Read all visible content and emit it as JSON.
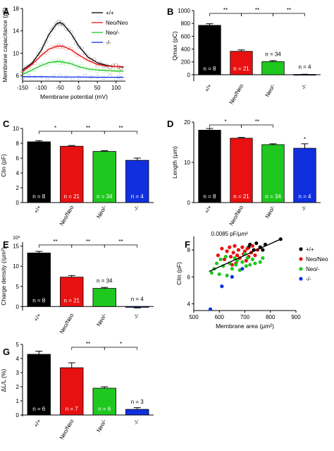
{
  "chart_data": [
    {
      "panel": "A",
      "type": "line",
      "xlabel": "Membrane potential (mV)",
      "ylabel": "Membrane capacitance (pF)",
      "xlim": [
        -150,
        125
      ],
      "ylim": [
        5,
        18
      ],
      "xticks": [
        -150,
        -100,
        -50,
        0,
        50,
        100
      ],
      "yticks": [
        6,
        10,
        14,
        18
      ],
      "legend_position": "top-right",
      "series": [
        {
          "name": "+/+",
          "color": "#000000",
          "x": [
            -150,
            -125,
            -100,
            -80,
            -60,
            -50,
            -40,
            -20,
            0,
            25,
            50,
            75,
            100,
            120
          ],
          "y": [
            7.0,
            8.2,
            10.5,
            13.3,
            15.2,
            15.5,
            15.1,
            13.5,
            11.3,
            9.3,
            8.3,
            7.8,
            7.6,
            7.5
          ]
        },
        {
          "name": "Neo/Neo",
          "color": "#e81010",
          "x": [
            -150,
            -125,
            -100,
            -80,
            -60,
            -50,
            -40,
            -20,
            0,
            25,
            50,
            75,
            100,
            120
          ],
          "y": [
            6.7,
            8.0,
            9.6,
            10.7,
            11.2,
            11.3,
            11.2,
            10.6,
            9.7,
            8.7,
            8.0,
            7.7,
            7.6,
            7.6
          ]
        },
        {
          "name": "Neo/-",
          "color": "#1ec81e",
          "x": [
            -150,
            -125,
            -100,
            -80,
            -60,
            -50,
            -40,
            -20,
            0,
            25,
            50,
            75,
            100,
            120
          ],
          "y": [
            6.2,
            7.0,
            7.8,
            8.3,
            8.5,
            8.5,
            8.4,
            8.1,
            7.6,
            7.2,
            7.0,
            6.9,
            6.8,
            6.8
          ]
        },
        {
          "name": "-/-",
          "color": "#1030e0",
          "x": [
            -150,
            -100,
            -50,
            0,
            50,
            100,
            120
          ],
          "y": [
            5.8,
            5.8,
            5.75,
            5.75,
            5.7,
            5.7,
            5.7
          ]
        }
      ]
    },
    {
      "panel": "B",
      "type": "bar",
      "ylabel": "Qmax (pC)",
      "ylim": [
        -100,
        1000
      ],
      "yticks": [
        0,
        200,
        400,
        600,
        800,
        1000
      ],
      "categories": [
        "+/+",
        "Neo/Neo",
        "Neo/-",
        "-/-"
      ],
      "values": [
        770,
        365,
        205,
        5
      ],
      "errors": [
        25,
        22,
        15,
        3
      ],
      "colors": [
        "#000000",
        "#e81010",
        "#1ec81e",
        "#1030e0"
      ],
      "n_labels": [
        "n = 8",
        "n = 21",
        "n = 34",
        "n = 4"
      ],
      "significance": [
        {
          "pair": [
            0,
            1
          ],
          "label": "**"
        },
        {
          "pair": [
            1,
            2
          ],
          "label": "**"
        },
        {
          "pair": [
            2,
            3
          ],
          "label": "**"
        }
      ]
    },
    {
      "panel": "C",
      "type": "bar",
      "ylabel": "Clin (pF)",
      "ylim": [
        0,
        10
      ],
      "yticks": [
        0,
        2,
        4,
        6,
        8,
        10
      ],
      "categories": [
        "+/+",
        "Neo/Neo",
        "Neo/-",
        "-/-"
      ],
      "values": [
        8.2,
        7.6,
        6.9,
        5.7
      ],
      "errors": [
        0.15,
        0.1,
        0.1,
        0.3
      ],
      "colors": [
        "#000000",
        "#e81010",
        "#1ec81e",
        "#1030e0"
      ],
      "n_labels": [
        "n = 8",
        "n = 21",
        "n = 34",
        "n = 4"
      ],
      "significance": [
        {
          "pair": [
            0,
            1
          ],
          "label": "*"
        },
        {
          "pair": [
            1,
            2
          ],
          "label": "**"
        },
        {
          "pair": [
            2,
            3
          ],
          "label": "**"
        }
      ]
    },
    {
      "panel": "D",
      "type": "bar",
      "ylabel": "Length (μm)",
      "ylim": [
        0,
        20
      ],
      "yticks": [
        0,
        10,
        20
      ],
      "categories": [
        "+/+",
        "Neo/Neo",
        "Neo/-",
        "-/-"
      ],
      "values": [
        18.0,
        16.0,
        14.4,
        13.5
      ],
      "errors": [
        0.4,
        0.2,
        0.2,
        1.1
      ],
      "colors": [
        "#000000",
        "#e81010",
        "#1ec81e",
        "#1030e0"
      ],
      "n_labels": [
        "n = 8",
        "n = 21",
        "n = 34",
        "n = 4"
      ],
      "significance": [
        {
          "pair": [
            0,
            1
          ],
          "label": "*"
        },
        {
          "pair": [
            1,
            2
          ],
          "label": "**"
        },
        {
          "single": 3,
          "label": "*"
        }
      ]
    },
    {
      "panel": "E",
      "type": "bar",
      "ylabel": "Charge density (/μm²)",
      "scale_note": "10³",
      "ylim": [
        -1,
        16
      ],
      "yticks": [
        0,
        5,
        10,
        15
      ],
      "categories": [
        "+/+",
        "Neo/Neo",
        "Neo/-",
        "-/-"
      ],
      "values": [
        13.3,
        7.3,
        4.5,
        -0.2
      ],
      "errors": [
        0.4,
        0.4,
        0.25,
        0.15
      ],
      "colors": [
        "#000000",
        "#e81010",
        "#1ec81e",
        "#1030e0"
      ],
      "n_labels": [
        "n = 8",
        "n = 21",
        "n = 34",
        "n = 4"
      ],
      "significance": [
        {
          "pair": [
            0,
            1
          ],
          "label": "**"
        },
        {
          "pair": [
            1,
            2
          ],
          "label": "**"
        },
        {
          "pair": [
            2,
            3
          ],
          "label": "**"
        }
      ]
    },
    {
      "panel": "F",
      "type": "scatter",
      "xlabel": "Membrane area (μm²)",
      "ylabel": "Clin (pF)",
      "xlim": [
        500,
        900
      ],
      "ylim": [
        3.5,
        9
      ],
      "xticks": [
        500,
        600,
        700,
        800,
        900
      ],
      "yticks": [
        4,
        6,
        8
      ],
      "annotation": "0.0085 pF/μm²",
      "fit_line": {
        "x": [
          560,
          840
        ],
        "y": [
          6.4,
          8.8
        ]
      },
      "legend_position": "right",
      "series": [
        {
          "name": "+/+",
          "color": "#000000",
          "x": [
            715,
            720,
            735,
            745,
            760,
            770,
            780,
            840
          ],
          "y": [
            8.2,
            8.4,
            8.0,
            8.5,
            8.2,
            8.0,
            8.4,
            8.8
          ]
        },
        {
          "name": "Neo/Neo",
          "color": "#e81010",
          "x": [
            595,
            610,
            620,
            630,
            640,
            645,
            650,
            655,
            660,
            665,
            670,
            675,
            680,
            690,
            695,
            700,
            705,
            710,
            715,
            725,
            730,
            740,
            750
          ],
          "y": [
            7.6,
            8.1,
            7.3,
            7.9,
            8.2,
            7.5,
            6.9,
            7.8,
            8.3,
            7.0,
            7.6,
            8.0,
            7.4,
            8.2,
            7.7,
            7.9,
            7.2,
            8.1,
            7.5,
            7.8,
            8.3,
            7.6,
            8.0
          ]
        },
        {
          "name": "Neo/-",
          "color": "#1ec81e",
          "x": [
            570,
            580,
            590,
            600,
            605,
            615,
            625,
            630,
            640,
            650,
            660,
            665,
            670,
            680,
            690,
            700,
            705,
            710,
            720,
            730,
            740,
            760,
            770
          ],
          "y": [
            6.3,
            6.6,
            7.0,
            6.2,
            7.3,
            6.8,
            7.5,
            6.1,
            7.0,
            6.6,
            7.4,
            6.9,
            7.2,
            6.5,
            7.1,
            7.7,
            6.8,
            7.4,
            6.9,
            7.3,
            7.0,
            7.1,
            7.4
          ]
        },
        {
          "name": "-/-",
          "color": "#1030e0",
          "x": [
            565,
            610,
            650,
            690
          ],
          "y": [
            3.6,
            5.3,
            6.0,
            6.6
          ]
        }
      ]
    },
    {
      "panel": "G",
      "type": "bar",
      "ylabel": "ΔL/L (%)",
      "ylim": [
        -0.1,
        5
      ],
      "yticks": [
        0,
        1,
        2,
        3,
        4,
        5
      ],
      "categories": [
        "+/+",
        "Neo/Neo",
        "Neo/-",
        "-/-"
      ],
      "values": [
        4.3,
        3.35,
        1.9,
        0.4
      ],
      "errors": [
        0.22,
        0.35,
        0.1,
        0.12
      ],
      "colors": [
        "#000000",
        "#e81010",
        "#1ec81e",
        "#1030e0"
      ],
      "n_labels": [
        "n = 6",
        "n = 7",
        "n = 6",
        "n = 3"
      ],
      "significance": [
        {
          "pair": [
            1,
            2
          ],
          "label": "**"
        },
        {
          "pair": [
            2,
            3
          ],
          "label": "*"
        }
      ]
    }
  ]
}
